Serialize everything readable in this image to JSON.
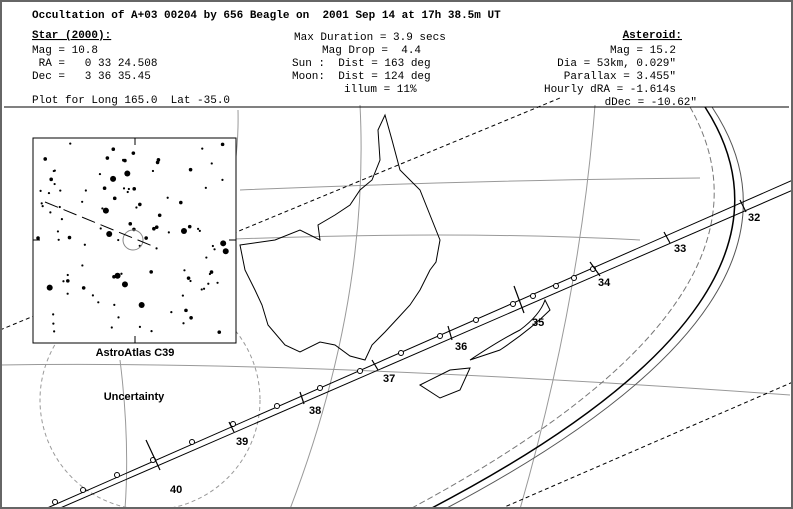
{
  "header": {
    "title": "Occultation of A+03 00204 by 656 Beagle on  2001 Sep 14 at 17h 38.5m UT",
    "star": {
      "heading": "Star (2000):",
      "lines": [
        "Mag = 10.8",
        " RA =   0 33 24.508",
        "Dec =   3 36 35.45"
      ]
    },
    "event": {
      "lines": [
        "Max Duration = 3.9 secs",
        "Mag Drop =  4.4",
        "Sun :  Dist = 163 deg",
        "Moon:  Dist = 124 deg",
        "illum = 11%"
      ]
    },
    "asteroid": {
      "heading": "Asteroid:",
      "lines": [
        "Mag = 15.2",
        "Dia = 53km, 0.029\"",
        "Parallax = 3.455\"",
        "Hourly dRA = -1.614s",
        "dDec = -10.62\""
      ]
    },
    "plot_location": "Plot for Long 165.0  Lat -35.0"
  },
  "map": {
    "star_chart_label": "AstroAtlas C39",
    "uncertainty_label": "Uncertainty",
    "time_labels": [
      "32",
      "33",
      "34",
      "35",
      "36",
      "37",
      "38",
      "39",
      "40"
    ]
  }
}
